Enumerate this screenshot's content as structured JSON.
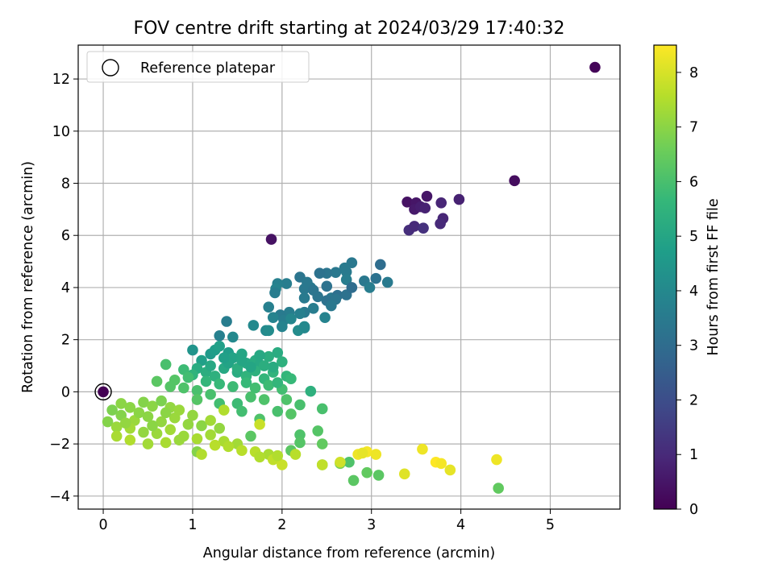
{
  "chart_data": {
    "type": "scatter",
    "title": "FOV centre drift starting at 2024/03/29 17:40:32",
    "xlabel": "Angular distance from reference (arcmin)",
    "ylabel": "Rotation from reference (arcmin)",
    "xlim": [
      -0.28,
      5.78
    ],
    "ylim": [
      -4.5,
      13.3
    ],
    "xticks": [
      0,
      1,
      2,
      3,
      4,
      5
    ],
    "yticks": [
      -4,
      -2,
      0,
      2,
      4,
      6,
      8,
      10,
      12
    ],
    "grid": true,
    "legend": {
      "placement": "top-left",
      "entries": [
        "Reference platepar"
      ]
    },
    "reference_point": {
      "x": 0,
      "y": 0,
      "label": "Reference platepar"
    },
    "colorbar": {
      "label": "Hours from first FF file",
      "range": [
        0,
        8.5
      ],
      "ticks": [
        0,
        1,
        2,
        3,
        4,
        5,
        6,
        7,
        8
      ],
      "colormap": "viridis"
    },
    "series": [
      {
        "points": [
          [
            5.5,
            12.45,
            0.1
          ],
          [
            4.6,
            8.1,
            0.3
          ],
          [
            3.4,
            7.28,
            0.4
          ],
          [
            3.5,
            7.25,
            0.5
          ],
          [
            3.62,
            7.5,
            0.5
          ],
          [
            3.48,
            7.0,
            0.6
          ],
          [
            3.55,
            7.1,
            0.7
          ],
          [
            3.98,
            7.38,
            0.8
          ],
          [
            3.78,
            7.25,
            0.9
          ],
          [
            3.6,
            7.05,
            0.8
          ],
          [
            3.8,
            6.65,
            0.9
          ],
          [
            3.77,
            6.45,
            1.0
          ],
          [
            3.42,
            6.2,
            1.1
          ],
          [
            3.48,
            6.35,
            1.0
          ],
          [
            3.58,
            6.28,
            1.2
          ],
          [
            1.88,
            5.85,
            0.4
          ],
          [
            2.78,
            4.95,
            3.4
          ],
          [
            2.7,
            4.75,
            3.5
          ],
          [
            2.72,
            4.6,
            3.5
          ],
          [
            2.6,
            4.58,
            3.4
          ],
          [
            2.5,
            4.55,
            3.3
          ],
          [
            2.42,
            4.55,
            3.2
          ],
          [
            2.72,
            4.3,
            3.6
          ],
          [
            2.32,
            4.0,
            3.5
          ],
          [
            2.2,
            4.4,
            3.3
          ],
          [
            2.28,
            4.2,
            3.4
          ],
          [
            2.05,
            4.15,
            3.6
          ],
          [
            1.95,
            4.15,
            3.7
          ],
          [
            1.93,
            3.95,
            3.8
          ],
          [
            1.92,
            3.8,
            3.6
          ],
          [
            2.25,
            3.95,
            3.4
          ],
          [
            2.35,
            3.9,
            3.3
          ],
          [
            2.5,
            4.05,
            3.2
          ],
          [
            2.25,
            3.6,
            3.5
          ],
          [
            2.4,
            3.65,
            3.3
          ],
          [
            2.55,
            3.6,
            3.4
          ],
          [
            2.5,
            3.5,
            3.2
          ],
          [
            2.62,
            3.7,
            3.1
          ],
          [
            2.72,
            3.72,
            3.2
          ],
          [
            2.6,
            3.55,
            3.3
          ],
          [
            2.55,
            3.3,
            3.4
          ],
          [
            2.35,
            3.2,
            3.6
          ],
          [
            2.25,
            3.05,
            3.5
          ],
          [
            2.2,
            3.0,
            3.7
          ],
          [
            2.08,
            3.05,
            3.6
          ],
          [
            1.98,
            2.95,
            3.5
          ],
          [
            1.85,
            3.25,
            3.7
          ],
          [
            1.9,
            2.85,
            3.8
          ],
          [
            2.02,
            2.75,
            3.6
          ],
          [
            2.1,
            2.8,
            3.9
          ],
          [
            2.48,
            2.85,
            3.8
          ],
          [
            2.0,
            2.5,
            3.8
          ],
          [
            2.25,
            2.45,
            3.9
          ],
          [
            1.82,
            2.35,
            4.0
          ],
          [
            1.68,
            2.55,
            4.0
          ],
          [
            1.85,
            2.35,
            4.1
          ],
          [
            2.18,
            2.35,
            4.1
          ],
          [
            2.25,
            2.5,
            4.0
          ],
          [
            3.1,
            4.88,
            3.0
          ],
          [
            2.92,
            4.25,
            3.4
          ],
          [
            3.18,
            4.2,
            3.5
          ],
          [
            3.05,
            4.35,
            3.2
          ],
          [
            2.98,
            4.0,
            3.6
          ],
          [
            2.78,
            4.0,
            3.0
          ],
          [
            1.38,
            2.7,
            3.6
          ],
          [
            1.3,
            2.15,
            3.7
          ],
          [
            1.45,
            2.1,
            4.0
          ],
          [
            1.0,
            1.6,
            4.4
          ],
          [
            1.2,
            1.45,
            4.6
          ],
          [
            1.25,
            1.6,
            4.7
          ],
          [
            1.3,
            1.75,
            4.8
          ],
          [
            1.4,
            1.5,
            4.7
          ],
          [
            1.45,
            1.3,
            4.9
          ],
          [
            1.55,
            1.45,
            5.0
          ],
          [
            1.6,
            1.1,
            5.1
          ],
          [
            1.7,
            1.2,
            5.2
          ],
          [
            1.75,
            1.05,
            5.1
          ],
          [
            1.85,
            1.35,
            5.3
          ],
          [
            1.95,
            1.5,
            5.2
          ],
          [
            2.0,
            1.15,
            5.4
          ],
          [
            1.1,
            1.2,
            4.8
          ],
          [
            1.05,
            0.9,
            5.2
          ],
          [
            1.15,
            0.75,
            5.3
          ],
          [
            1.25,
            0.6,
            5.4
          ],
          [
            1.35,
            0.9,
            5.1
          ],
          [
            1.5,
            0.75,
            5.2
          ],
          [
            1.6,
            0.6,
            5.5
          ],
          [
            1.7,
            0.8,
            5.4
          ],
          [
            1.8,
            0.5,
            5.6
          ],
          [
            1.9,
            0.75,
            5.5
          ],
          [
            2.05,
            0.6,
            5.6
          ],
          [
            1.15,
            0.4,
            5.6
          ],
          [
            1.3,
            0.3,
            5.7
          ],
          [
            1.45,
            0.2,
            5.8
          ],
          [
            1.6,
            0.35,
            5.7
          ],
          [
            1.7,
            0.15,
            5.9
          ],
          [
            1.85,
            0.25,
            5.8
          ],
          [
            2.0,
            0.1,
            5.9
          ],
          [
            1.2,
            1.0,
            5.1
          ],
          [
            1.4,
            1.1,
            4.9
          ],
          [
            1.5,
            0.9,
            5.3
          ],
          [
            1.65,
            0.95,
            5.0
          ],
          [
            1.9,
            0.95,
            5.2
          ],
          [
            2.1,
            0.5,
            5.7
          ],
          [
            1.35,
            1.3,
            4.8
          ],
          [
            1.55,
            1.2,
            5.0
          ],
          [
            1.75,
            1.4,
            5.1
          ],
          [
            1.8,
            1.0,
            5.3
          ],
          [
            1.95,
            0.35,
            5.6
          ],
          [
            2.32,
            0.02,
            5.4
          ],
          [
            1.0,
            0.65,
            5.5
          ],
          [
            0.9,
            0.85,
            5.8
          ],
          [
            0.7,
            1.05,
            6.0
          ],
          [
            0.95,
            0.55,
            5.9
          ],
          [
            0.8,
            0.45,
            6.2
          ],
          [
            0.6,
            0.4,
            6.3
          ],
          [
            0.75,
            0.2,
            6.2
          ],
          [
            0.9,
            0.15,
            6.1
          ],
          [
            1.05,
            0.05,
            6.0
          ],
          [
            1.2,
            -0.1,
            6.0
          ],
          [
            1.05,
            -0.3,
            6.2
          ],
          [
            1.3,
            -0.45,
            5.9
          ],
          [
            1.5,
            -0.45,
            5.8
          ],
          [
            1.65,
            -0.2,
            6.0
          ],
          [
            1.8,
            -0.3,
            6.1
          ],
          [
            1.55,
            -0.75,
            5.9
          ],
          [
            1.75,
            -1.05,
            6.1
          ],
          [
            1.95,
            -0.75,
            6.0
          ],
          [
            2.05,
            -0.3,
            6.1
          ],
          [
            2.2,
            -0.5,
            6.0
          ],
          [
            2.45,
            -0.65,
            6.0
          ],
          [
            2.1,
            -0.85,
            6.2
          ],
          [
            2.2,
            -1.65,
            6.1
          ],
          [
            2.2,
            -1.95,
            6.2
          ],
          [
            2.1,
            -2.25,
            6.3
          ],
          [
            2.4,
            -1.5,
            6.2
          ],
          [
            2.45,
            -2.0,
            6.4
          ],
          [
            2.45,
            -2.8,
            6.8
          ],
          [
            2.65,
            -2.75,
            6.7
          ],
          [
            2.8,
            -3.4,
            6.3
          ],
          [
            2.95,
            -3.1,
            6.4
          ],
          [
            3.08,
            -3.2,
            6.3
          ],
          [
            2.75,
            -2.7,
            6.1
          ],
          [
            4.42,
            -3.7,
            6.4
          ],
          [
            1.65,
            -1.7,
            6.3
          ],
          [
            0.2,
            -0.45,
            7.0
          ],
          [
            0.3,
            -0.6,
            7.0
          ],
          [
            0.45,
            -0.4,
            6.9
          ],
          [
            0.55,
            -0.55,
            7.0
          ],
          [
            0.65,
            -0.35,
            6.8
          ],
          [
            0.75,
            -0.6,
            7.1
          ],
          [
            0.2,
            -0.9,
            6.9
          ],
          [
            0.35,
            -1.1,
            7.2
          ],
          [
            0.5,
            -0.95,
            7.0
          ],
          [
            0.65,
            -1.15,
            7.1
          ],
          [
            0.8,
            -1.0,
            7.2
          ],
          [
            0.95,
            -1.25,
            7.1
          ],
          [
            0.1,
            -0.7,
            6.8
          ],
          [
            0.05,
            -1.15,
            6.9
          ],
          [
            0.15,
            -1.35,
            7.2
          ],
          [
            0.3,
            -1.4,
            7.3
          ],
          [
            0.45,
            -1.55,
            7.1
          ],
          [
            0.6,
            -1.6,
            7.2
          ],
          [
            0.75,
            -1.45,
            7.3
          ],
          [
            0.9,
            -1.7,
            7.2
          ],
          [
            1.05,
            -1.8,
            7.4
          ],
          [
            1.2,
            -1.65,
            7.3
          ],
          [
            1.35,
            -1.9,
            7.4
          ],
          [
            1.5,
            -2.0,
            7.3
          ],
          [
            0.15,
            -1.7,
            7.4
          ],
          [
            0.3,
            -1.85,
            7.5
          ],
          [
            0.5,
            -2.0,
            7.3
          ],
          [
            0.7,
            -1.95,
            7.4
          ],
          [
            0.85,
            -1.85,
            7.2
          ],
          [
            1.05,
            -2.3,
            6.9
          ],
          [
            1.1,
            -2.4,
            7.5
          ],
          [
            1.25,
            -2.05,
            7.6
          ],
          [
            1.4,
            -2.1,
            7.5
          ],
          [
            1.55,
            -2.25,
            7.6
          ],
          [
            1.7,
            -2.3,
            7.6
          ],
          [
            1.85,
            -2.4,
            7.4
          ],
          [
            1.75,
            -2.5,
            7.5
          ],
          [
            1.9,
            -2.6,
            7.7
          ],
          [
            2.0,
            -2.8,
            7.8
          ],
          [
            2.15,
            -2.4,
            7.6
          ],
          [
            1.95,
            -2.45,
            7.5
          ],
          [
            1.35,
            -0.7,
            7.5
          ],
          [
            1.75,
            -1.25,
            7.8
          ],
          [
            2.45,
            -2.8,
            7.7
          ],
          [
            2.65,
            -2.7,
            7.9
          ],
          [
            0.4,
            -0.8,
            7.0
          ],
          [
            0.25,
            -1.2,
            7.1
          ],
          [
            0.55,
            -1.3,
            7.0
          ],
          [
            0.7,
            -0.8,
            7.0
          ],
          [
            0.85,
            -0.7,
            7.2
          ],
          [
            1.0,
            -0.9,
            7.1
          ],
          [
            1.1,
            -1.3,
            7.0
          ],
          [
            1.2,
            -1.1,
            7.3
          ],
          [
            1.3,
            -1.4,
            7.1
          ],
          [
            2.85,
            -2.4,
            8.3
          ],
          [
            2.95,
            -2.3,
            8.4
          ],
          [
            3.05,
            -2.4,
            8.3
          ],
          [
            3.37,
            -3.15,
            8.1
          ],
          [
            3.57,
            -2.2,
            8.3
          ],
          [
            3.72,
            -2.7,
            8.5
          ],
          [
            3.78,
            -2.75,
            8.4
          ],
          [
            3.88,
            -3.0,
            8.2
          ],
          [
            4.4,
            -2.6,
            8.3
          ],
          [
            2.9,
            -2.35,
            8.2
          ]
        ]
      }
    ]
  }
}
